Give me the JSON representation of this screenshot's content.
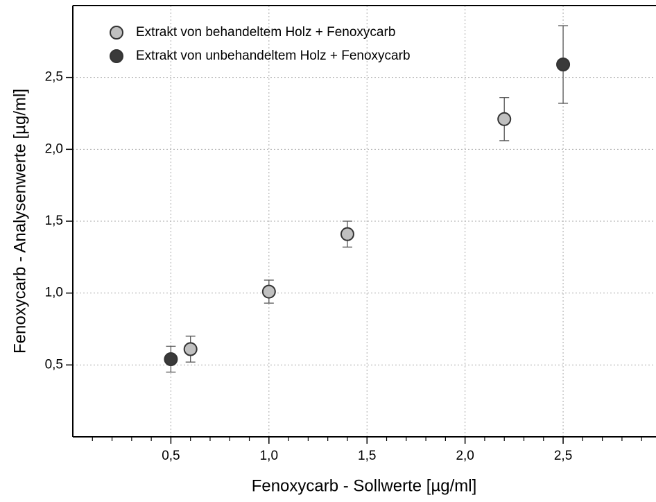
{
  "chart_data": {
    "type": "scatter",
    "xlabel": "Fenoxycarb - Sollwerte [µg/ml]",
    "ylabel": "Fenoxycarb - Analysenwerte [µg/ml]",
    "xlim": [
      0,
      2.97
    ],
    "ylim": [
      0,
      3.0
    ],
    "xticks": [
      {
        "value": 0.5,
        "label": "0,5"
      },
      {
        "value": 1.0,
        "label": "1,0"
      },
      {
        "value": 1.5,
        "label": "1,5"
      },
      {
        "value": 2.0,
        "label": "2,0"
      },
      {
        "value": 2.5,
        "label": "2,5"
      }
    ],
    "xticks_minor": [
      0.1,
      0.2,
      0.3,
      0.4,
      0.6,
      0.7,
      0.8,
      0.9,
      1.1,
      1.2,
      1.3,
      1.4,
      1.6,
      1.7,
      1.8,
      1.9,
      2.1,
      2.2,
      2.3,
      2.4,
      2.6,
      2.7,
      2.8,
      2.9
    ],
    "yticks": [
      {
        "value": 0.5,
        "label": "0,5"
      },
      {
        "value": 1.0,
        "label": "1,0"
      },
      {
        "value": 1.5,
        "label": "1,5"
      },
      {
        "value": 2.0,
        "label": "2,0"
      },
      {
        "value": 2.5,
        "label": "2,5"
      }
    ],
    "grid": true,
    "legend": "upper left",
    "series": [
      {
        "name": "Extrakt von behandeltem Holz + Fenoxycarb",
        "color": "#c0c0c0",
        "x": [
          0.6,
          1.0,
          1.4,
          2.2
        ],
        "values": [
          0.61,
          1.01,
          1.41,
          2.21
        ],
        "errors": [
          0.09,
          0.08,
          0.09,
          0.15
        ]
      },
      {
        "name": "Extrakt von unbehandeltem Holz + Fenoxycarb",
        "color": "#3a3a3a",
        "x": [
          0.5,
          2.5
        ],
        "values": [
          0.54,
          2.59
        ],
        "errors": [
          0.09,
          0.27
        ]
      }
    ]
  }
}
